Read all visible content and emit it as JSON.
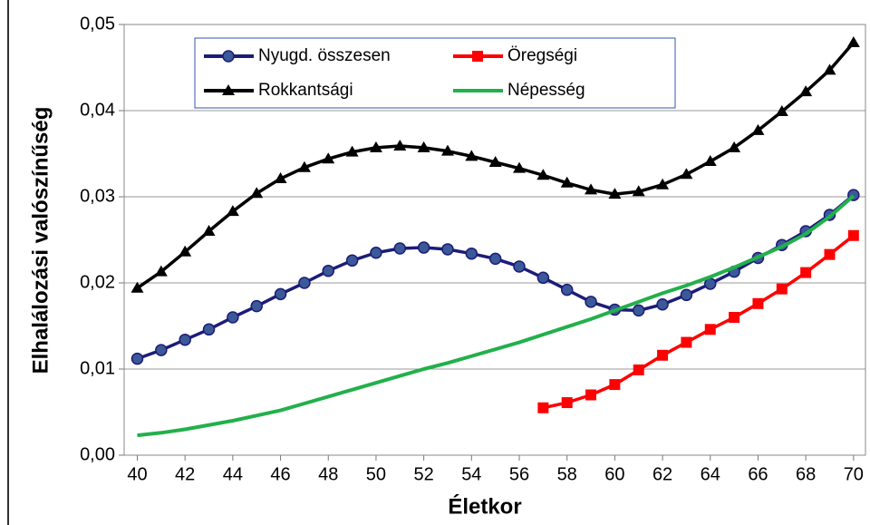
{
  "chart_data": {
    "type": "line",
    "xlabel": "Életkor",
    "ylabel": "Elhalálozási valószínűség",
    "x": [
      40,
      41,
      42,
      43,
      44,
      45,
      46,
      47,
      48,
      49,
      50,
      51,
      52,
      53,
      54,
      55,
      56,
      57,
      58,
      59,
      60,
      61,
      62,
      63,
      64,
      65,
      66,
      67,
      68,
      69,
      70
    ],
    "xlim": [
      39.45,
      70.5
    ],
    "xticks": [
      40,
      42,
      44,
      46,
      48,
      50,
      52,
      54,
      56,
      58,
      60,
      62,
      64,
      66,
      68,
      70
    ],
    "ylim": [
      0,
      0.05
    ],
    "yticks": [
      {
        "value": 0,
        "label": "0,00"
      },
      {
        "value": 0.01,
        "label": "0,01"
      },
      {
        "value": 0.02,
        "label": "0,02"
      },
      {
        "value": 0.03,
        "label": "0,03"
      },
      {
        "value": 0.04,
        "label": "0,04"
      },
      {
        "value": 0.05,
        "label": "0,05"
      }
    ],
    "grid": true,
    "legend": "top",
    "series": [
      {
        "name": "Nyugd. összesen",
        "color": "#1c1c78",
        "marker": "circle",
        "values": [
          0.0112,
          0.0122,
          0.0134,
          0.0146,
          0.016,
          0.0173,
          0.0187,
          0.02,
          0.0214,
          0.0226,
          0.0235,
          0.024,
          0.0241,
          0.0239,
          0.0234,
          0.0228,
          0.0219,
          0.0206,
          0.0192,
          0.0178,
          0.0169,
          0.0168,
          0.0175,
          0.0186,
          0.0199,
          0.0213,
          0.0229,
          0.0244,
          0.026,
          0.0279,
          0.0302
        ]
      },
      {
        "name": "Öregségi",
        "color": "#ff0000",
        "marker": "square",
        "values": [
          null,
          null,
          null,
          null,
          null,
          null,
          null,
          null,
          null,
          null,
          null,
          null,
          null,
          null,
          null,
          null,
          null,
          0.0055,
          0.0061,
          0.007,
          0.0082,
          0.0099,
          0.0116,
          0.0131,
          0.0146,
          0.016,
          0.0176,
          0.0193,
          0.0212,
          0.0233,
          0.0255
        ]
      },
      {
        "name": "Rokkantsági",
        "color": "#000000",
        "marker": "triangle",
        "values": [
          0.0194,
          0.0213,
          0.0236,
          0.026,
          0.0283,
          0.0304,
          0.0321,
          0.0334,
          0.0344,
          0.0352,
          0.0357,
          0.0359,
          0.0357,
          0.0353,
          0.0347,
          0.034,
          0.0333,
          0.0325,
          0.0316,
          0.0308,
          0.0303,
          0.0306,
          0.0314,
          0.0326,
          0.0341,
          0.0357,
          0.0377,
          0.0399,
          0.0422,
          0.0447,
          0.0479
        ]
      },
      {
        "name": "Népesség",
        "color": "#22b04b",
        "marker": "none",
        "values": [
          0.0023,
          0.0026,
          0.003,
          0.0035,
          0.004,
          0.0046,
          0.0052,
          0.006,
          0.0068,
          0.0076,
          0.0084,
          0.0092,
          0.01,
          0.0107,
          0.0115,
          0.0123,
          0.0131,
          0.014,
          0.0149,
          0.0158,
          0.0168,
          0.0178,
          0.0188,
          0.0197,
          0.0207,
          0.0218,
          0.023,
          0.0242,
          0.0257,
          0.0277,
          0.0301
        ]
      }
    ]
  }
}
